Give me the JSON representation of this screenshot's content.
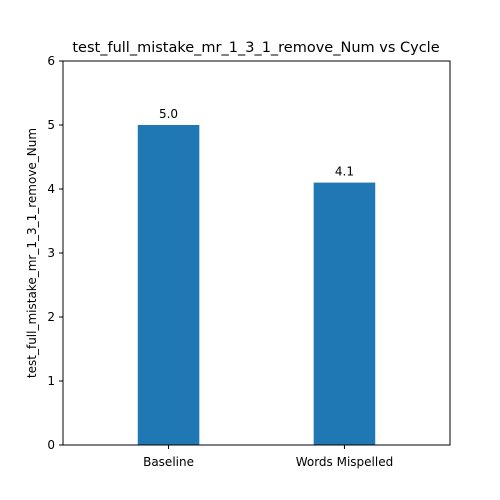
{
  "chart_data": {
    "type": "bar",
    "title": "test_full_mistake_mr_1_3_1_remove_Num vs Cycle",
    "xlabel": "",
    "ylabel": "test_full_mistake_mr_1_3_1_remove_Num",
    "categories": [
      "Baseline",
      "Words Mispelled"
    ],
    "values": [
      5.0,
      4.1
    ],
    "data_labels": [
      "5.0",
      "4.1"
    ],
    "ylim": [
      0,
      6
    ],
    "yticks": [
      0,
      1,
      2,
      3,
      4,
      5,
      6
    ],
    "grid": false,
    "bar_color": "#1f77b4"
  }
}
